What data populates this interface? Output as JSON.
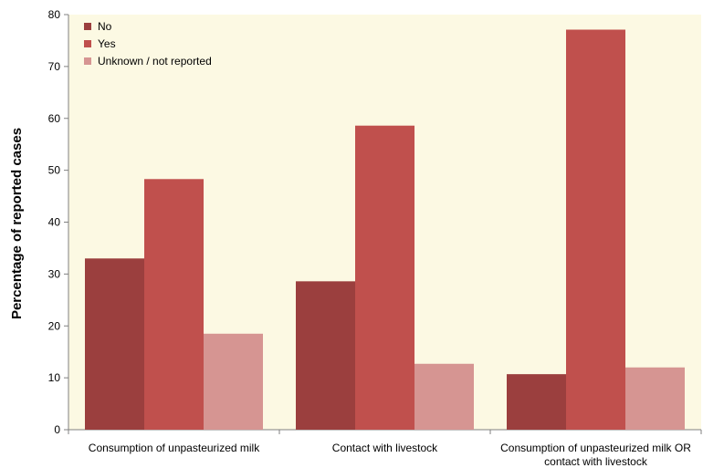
{
  "chart_data": {
    "type": "bar",
    "title": "",
    "xlabel": "",
    "ylabel": "Percentage of reported cases",
    "ylim": [
      0,
      80
    ],
    "yticks": [
      0,
      10,
      20,
      30,
      40,
      50,
      60,
      70,
      80
    ],
    "grid": false,
    "legend_position": "top-left",
    "background_color": "#fcf9e3",
    "categories": [
      [
        "Consumption of unpasteurized milk"
      ],
      [
        "Contact with livestock"
      ],
      [
        "Consumption of unpasteurized milk OR",
        "contact with livestock"
      ]
    ],
    "series": [
      {
        "name": "No",
        "color": "#9b3f3e",
        "values": [
          33.0,
          28.6,
          10.7
        ]
      },
      {
        "name": "Yes",
        "color": "#c0504d",
        "values": [
          48.3,
          58.6,
          77.1
        ]
      },
      {
        "name": "Unknown / not reported",
        "color": "#d69592",
        "values": [
          18.5,
          12.7,
          12.0
        ]
      }
    ]
  }
}
